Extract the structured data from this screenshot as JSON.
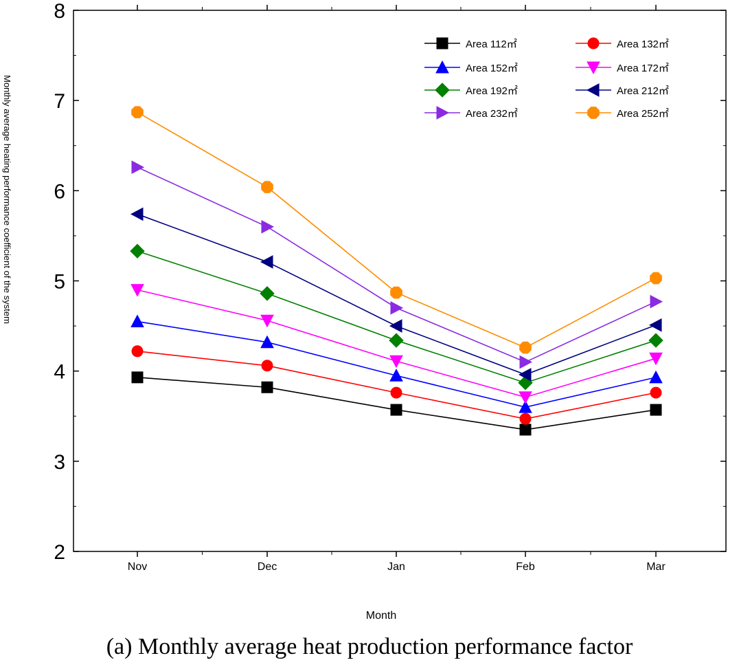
{
  "chart_data": {
    "type": "line",
    "title": "",
    "xlabel": "Month",
    "ylabel": "Monthly average heating performance coefficient of the system",
    "categories": [
      "Nov",
      "Dec",
      "Jan",
      "Feb",
      "Mar"
    ],
    "ylim": [
      2,
      8
    ],
    "yticks": [
      2,
      3,
      4,
      5,
      6,
      7,
      8
    ],
    "grid": false,
    "legend_position": "top-right",
    "series": [
      {
        "name": "Area 112㎡",
        "color": "#000000",
        "marker": "square",
        "values": [
          3.93,
          3.82,
          3.57,
          3.35,
          3.57
        ]
      },
      {
        "name": "Area 132㎡",
        "color": "#ff0000",
        "marker": "circle",
        "values": [
          4.22,
          4.06,
          3.76,
          3.47,
          3.76
        ]
      },
      {
        "name": "Area 152㎡",
        "color": "#0000ff",
        "marker": "triangle-up",
        "values": [
          4.55,
          4.32,
          3.95,
          3.6,
          3.93
        ]
      },
      {
        "name": "Area 172㎡",
        "color": "#ff00ff",
        "marker": "triangle-down",
        "values": [
          4.9,
          4.56,
          4.11,
          3.71,
          4.14
        ]
      },
      {
        "name": "Area 192㎡",
        "color": "#008000",
        "marker": "diamond",
        "values": [
          5.33,
          4.86,
          4.34,
          3.87,
          4.34
        ]
      },
      {
        "name": "Area 212㎡",
        "color": "#000080",
        "marker": "triangle-left",
        "values": [
          5.74,
          5.21,
          4.5,
          3.96,
          4.51
        ]
      },
      {
        "name": "Area 232㎡",
        "color": "#8a2be2",
        "marker": "triangle-right",
        "values": [
          6.26,
          5.6,
          4.7,
          4.1,
          4.77
        ]
      },
      {
        "name": "Area 252㎡",
        "color": "#ff8c00",
        "marker": "hexagon",
        "values": [
          6.87,
          6.04,
          4.87,
          4.26,
          5.03
        ]
      }
    ]
  },
  "caption": "(a) Monthly average heat production performance factor"
}
